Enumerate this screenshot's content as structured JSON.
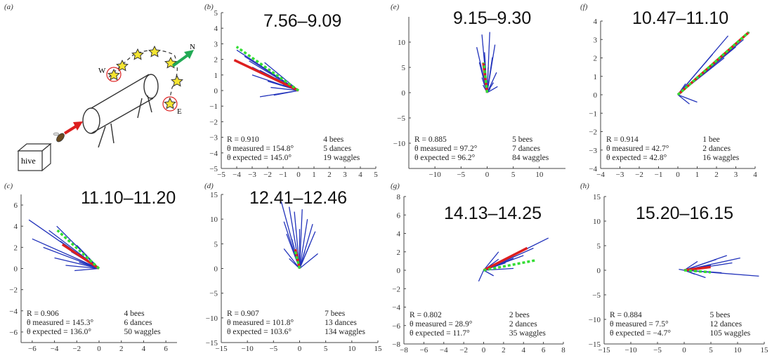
{
  "colors": {
    "dances": "#2233bb",
    "measured": "#dd1f1f",
    "expected": "#33dd33",
    "axis": "#444444"
  },
  "panel_a": {
    "label": "(a)",
    "hive_label": "hive",
    "compass_n": "N",
    "compass_w": "W",
    "compass_e": "E"
  },
  "chart_data": [
    {
      "id": "b",
      "label": "(b)",
      "title": "7.56–9.09",
      "type": "line",
      "xlim": [
        -5,
        5
      ],
      "ylim": [
        -5,
        5
      ],
      "xticks": [
        -5,
        -4,
        -3,
        -2,
        -1,
        0,
        1,
        2,
        3,
        4,
        5
      ],
      "yticks": [
        -5,
        -4,
        -3,
        -2,
        -1,
        0,
        1,
        2,
        3,
        4,
        5
      ],
      "stats": {
        "R": "R = 0.910",
        "measured": "θ measured = 154.8°",
        "expected": "θ expected = 145.0°",
        "bees": "4 bees",
        "dances": "5 dances",
        "waggles": "19 waggles"
      },
      "theta_measured": 154.8,
      "theta_expected": 145.0,
      "measured_len": 4.6,
      "expected_len": 4.9,
      "dances": [
        [
          -4.0,
          2.6
        ],
        [
          -3.5,
          2.2
        ],
        [
          -3.2,
          1.9
        ],
        [
          -3.0,
          1.5
        ],
        [
          -2.5,
          1.3
        ],
        [
          -3.0,
          1.0
        ],
        [
          -2.0,
          0.6
        ],
        [
          -1.8,
          0.2
        ],
        [
          -2.5,
          -0.4
        ],
        [
          -1.5,
          0.8
        ],
        [
          -2.2,
          1.8
        ],
        [
          -1.0,
          0.4
        ],
        [
          -1.6,
          -0.3
        ]
      ]
    },
    {
      "id": "e",
      "label": "(e)",
      "title": "9.15–9.30",
      "type": "line",
      "xlim": [
        -15,
        15
      ],
      "ylim": [
        -15,
        15
      ],
      "xticks": [
        -10,
        -5,
        0,
        5,
        10
      ],
      "yticks": [
        -10,
        -5,
        0,
        5,
        10
      ],
      "stats": {
        "R": "R = 0.885",
        "measured": "θ measured = 97.2°",
        "expected": "θ expected = 96.2°",
        "bees": "5 bees",
        "dances": "7 dances",
        "waggles": "84 waggles"
      },
      "theta_measured": 97.2,
      "theta_expected": 96.2,
      "measured_len": 6,
      "expected_len": 6,
      "dances": [
        [
          -1.0,
          11.5
        ],
        [
          0.5,
          12.0
        ],
        [
          -2.0,
          9.0
        ],
        [
          1.5,
          9.5
        ],
        [
          -0.5,
          8.0
        ],
        [
          1.0,
          7.0
        ],
        [
          -1.5,
          6.0
        ],
        [
          0.2,
          5.0
        ],
        [
          1.8,
          4.0
        ],
        [
          -1.0,
          3.0
        ],
        [
          1.2,
          2.0
        ],
        [
          -0.8,
          1.5
        ],
        [
          0.6,
          0.8
        ],
        [
          2.0,
          1.2
        ]
      ]
    },
    {
      "id": "f",
      "label": "(f)",
      "title": "10.47–11.10",
      "type": "line",
      "xlim": [
        -4,
        4
      ],
      "ylim": [
        -4,
        4
      ],
      "xticks": [
        -4,
        -3,
        -2,
        -1,
        0,
        1,
        2,
        3,
        4
      ],
      "yticks": [
        -4,
        -3,
        -2,
        -1,
        0,
        1,
        2,
        3,
        4
      ],
      "stats": {
        "R": "R = 0.914",
        "measured": "θ measured = 42.7°",
        "expected": "θ expected = 42.8°",
        "bees": "1 bee",
        "dances": "2 dances",
        "waggles": "16 waggles"
      },
      "theta_measured": 42.7,
      "theta_expected": 42.8,
      "measured_len": 5.0,
      "expected_len": 5.0,
      "dances": [
        [
          3.7,
          3.4
        ],
        [
          3.4,
          3.0
        ],
        [
          2.6,
          3.2
        ],
        [
          3.0,
          2.6
        ],
        [
          2.4,
          2.0
        ],
        [
          1.8,
          2.2
        ],
        [
          1.5,
          1.3
        ],
        [
          1.0,
          0.9
        ],
        [
          0.6,
          -0.5
        ],
        [
          1.0,
          -0.4
        ],
        [
          0.4,
          0.6
        ]
      ]
    },
    {
      "id": "c",
      "label": "(c)",
      "title": "11.10–11.20",
      "type": "line",
      "xlim": [
        -7,
        7
      ],
      "ylim": [
        -7,
        7
      ],
      "xticks": [
        -6,
        -4,
        -2,
        0,
        2,
        4,
        6
      ],
      "yticks": [
        -6,
        -4,
        -2,
        0,
        2,
        4,
        6
      ],
      "stats": {
        "R": "R = 0.906",
        "measured": "θ measured = 145.3°",
        "expected": "θ expected = 136.0°",
        "bees": "4 bees",
        "dances": "6 dances",
        "waggles": "50 waggles"
      },
      "theta_measured": 145.3,
      "theta_expected": 136.0,
      "measured_len": 4.0,
      "expected_len": 5.2,
      "dances": [
        [
          -6.3,
          4.6
        ],
        [
          -6.0,
          2.8
        ],
        [
          -5.0,
          2.0
        ],
        [
          -4.5,
          3.6
        ],
        [
          -4.0,
          1.0
        ],
        [
          -3.5,
          2.6
        ],
        [
          -3.0,
          0.3
        ],
        [
          -2.5,
          1.6
        ],
        [
          -2.0,
          2.2
        ],
        [
          -1.8,
          0.6
        ],
        [
          -3.8,
          4.0
        ],
        [
          -1.2,
          1.2
        ],
        [
          -2.2,
          -0.2
        ]
      ]
    },
    {
      "id": "d",
      "label": "(d)",
      "title": "12.41–12.46",
      "type": "line",
      "xlim": [
        -15,
        15
      ],
      "ylim": [
        -15,
        15
      ],
      "xticks": [
        -15,
        -10,
        -5,
        0,
        5,
        10,
        15
      ],
      "yticks": [
        -15,
        -10,
        -5,
        0,
        5,
        10,
        15
      ],
      "stats": {
        "R": "R = 0.907",
        "measured": "θ measured = 101.8°",
        "expected": "θ expected = 103.6°",
        "bees": "7 bees",
        "dances": "13 dances",
        "waggles": "134 waggles"
      },
      "theta_measured": 101.8,
      "theta_expected": 103.6,
      "measured_len": 4,
      "expected_len": 4,
      "dances": [
        [
          -3.5,
          13.5
        ],
        [
          -2.0,
          12.5
        ],
        [
          -1.0,
          11.5
        ],
        [
          0.5,
          12.0
        ],
        [
          1.5,
          10.0
        ],
        [
          2.5,
          9.0
        ],
        [
          -3.0,
          9.5
        ],
        [
          -2.5,
          7.0
        ],
        [
          3.0,
          7.5
        ],
        [
          -1.5,
          6.0
        ],
        [
          2.0,
          5.0
        ],
        [
          -3.0,
          4.0
        ],
        [
          1.0,
          3.5
        ],
        [
          3.5,
          3.0
        ],
        [
          -2.0,
          2.0
        ],
        [
          0.0,
          8.0
        ]
      ]
    },
    {
      "id": "g",
      "label": "(g)",
      "title": "14.13–14.25",
      "type": "line",
      "xlim": [
        -8,
        8
      ],
      "ylim": [
        -8,
        8
      ],
      "xticks": [
        -8,
        -6,
        -4,
        -2,
        0,
        2,
        4,
        6,
        8
      ],
      "yticks": [
        -8,
        -6,
        -4,
        -2,
        0,
        2,
        4,
        6,
        8
      ],
      "stats": {
        "R": "R = 0.802",
        "measured": "θ measured = 28.9°",
        "expected": "θ expected = 11.7°",
        "bees": "2 bees",
        "dances": "2 dances",
        "waggles": "35 waggles"
      },
      "theta_measured": 28.9,
      "theta_expected": 11.7,
      "measured_len": 5.0,
      "expected_len": 5.3,
      "dances": [
        [
          6.5,
          3.5
        ],
        [
          5.0,
          2.4
        ],
        [
          4.0,
          1.6
        ],
        [
          3.0,
          1.3
        ],
        [
          2.2,
          0.8
        ],
        [
          1.5,
          1.2
        ],
        [
          3.0,
          0.2
        ],
        [
          1.0,
          -0.6
        ],
        [
          -0.5,
          -1.2
        ],
        [
          1.5,
          2.0
        ]
      ]
    },
    {
      "id": "h",
      "label": "(h)",
      "title": "15.20–16.15",
      "type": "line",
      "xlim": [
        -15,
        15
      ],
      "ylim": [
        -15,
        15
      ],
      "xticks": [
        -15,
        -10,
        -5,
        0,
        5,
        10,
        15
      ],
      "yticks": [
        -15,
        -10,
        -5,
        0,
        5,
        10,
        15
      ],
      "stats": {
        "R": "R = 0.884",
        "measured": "θ measured = 7.5°",
        "expected": "θ expected = −4.7°",
        "bees": "5 bees",
        "dances": "12 dances",
        "waggles": "105 waggles"
      },
      "theta_measured": 7.5,
      "theta_expected": -4.7,
      "measured_len": 5,
      "expected_len": 5,
      "dances": [
        [
          14.0,
          -1.2
        ],
        [
          10.5,
          2.5
        ],
        [
          9.0,
          1.5
        ],
        [
          8.0,
          3.0
        ],
        [
          7.0,
          -0.5
        ],
        [
          6.0,
          2.2
        ],
        [
          5.0,
          1.0
        ],
        [
          4.0,
          -1.5
        ],
        [
          3.0,
          0.5
        ],
        [
          2.5,
          1.8
        ],
        [
          -1.0,
          0.2
        ],
        [
          2.0,
          -0.8
        ]
      ]
    }
  ]
}
